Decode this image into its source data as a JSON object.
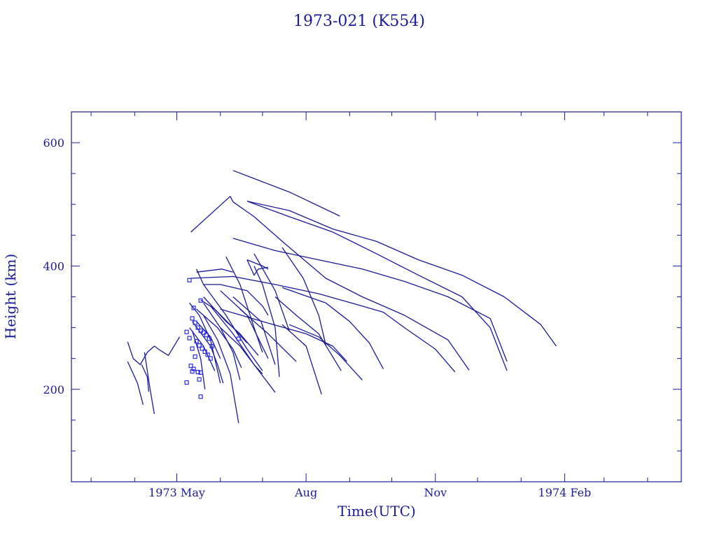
{
  "chart_data": {
    "type": "line",
    "title": "1973-021 (K554)",
    "xlabel": "Time(UTC)",
    "ylabel": "Height (km)",
    "x_axis": {
      "unit": "date",
      "range": [
        "1973-02-15",
        "1974-04-25"
      ],
      "tick_labels": [
        {
          "label": "1973 May",
          "date": "1973-05-01"
        },
        {
          "label": "Aug",
          "date": "1973-08-01"
        },
        {
          "label": "Nov",
          "date": "1973-11-01"
        },
        {
          "label": "1974 Feb",
          "date": "1974-02-01"
        }
      ]
    },
    "y_axis": {
      "unit": "km",
      "range": [
        50,
        650
      ],
      "tick_labels": [
        200,
        400,
        600
      ]
    },
    "grid": false,
    "color": "#1a1a99",
    "marker_color": "#2a2ae8",
    "series": [
      {
        "points": [
          [
            "1973-06-10",
            555
          ],
          [
            "1973-07-20",
            520
          ],
          [
            "1973-08-25",
            481
          ]
        ]
      },
      {
        "points": [
          [
            "1973-05-11",
            455
          ],
          [
            "1973-06-08",
            513
          ],
          [
            "1973-06-10",
            504
          ]
        ]
      },
      {
        "points": [
          [
            "1973-06-10",
            504
          ],
          [
            "1973-06-25",
            480
          ],
          [
            "1973-07-05",
            460
          ],
          [
            "1973-07-15",
            440
          ],
          [
            "1973-08-15",
            380
          ],
          [
            "1973-09-10",
            350
          ],
          [
            "1973-10-10",
            320
          ],
          [
            "1973-11-10",
            280
          ],
          [
            "1973-11-25",
            231
          ]
        ]
      },
      {
        "points": [
          [
            "1973-06-20",
            505
          ],
          [
            "1973-07-20",
            490
          ],
          [
            "1973-08-20",
            460
          ],
          [
            "1973-09-20",
            440
          ],
          [
            "1973-10-20",
            410
          ],
          [
            "1973-11-20",
            385
          ],
          [
            "1973-12-20",
            350
          ],
          [
            "1974-01-15",
            305
          ],
          [
            "1974-01-26",
            270
          ]
        ]
      },
      {
        "points": [
          [
            "1973-06-20",
            505
          ],
          [
            "1973-07-20",
            480
          ],
          [
            "1973-08-20",
            455
          ],
          [
            "1973-09-20",
            420
          ],
          [
            "1973-10-20",
            385
          ],
          [
            "1973-11-20",
            350
          ],
          [
            "1973-12-10",
            300
          ],
          [
            "1973-12-22",
            230
          ]
        ]
      },
      {
        "points": [
          [
            "1973-06-10",
            445
          ],
          [
            "1973-07-10",
            425
          ],
          [
            "1973-08-10",
            410
          ],
          [
            "1973-09-10",
            395
          ],
          [
            "1973-10-10",
            375
          ],
          [
            "1973-11-10",
            350
          ],
          [
            "1973-12-10",
            315
          ],
          [
            "1973-12-22",
            245
          ]
        ]
      },
      {
        "points": [
          [
            "1973-05-11",
            380
          ],
          [
            "1973-06-10",
            383
          ],
          [
            "1973-07-10",
            370
          ],
          [
            "1973-08-10",
            355
          ],
          [
            "1973-09-10",
            335
          ],
          [
            "1973-09-25",
            325
          ],
          [
            "1973-10-10",
            300
          ],
          [
            "1973-11-01",
            265
          ],
          [
            "1973-11-15",
            228
          ]
        ]
      },
      {
        "points": [
          [
            "1973-07-15",
            365
          ],
          [
            "1973-08-15",
            340
          ],
          [
            "1973-09-01",
            310
          ],
          [
            "1973-09-15",
            275
          ],
          [
            "1973-09-25",
            233
          ]
        ]
      },
      {
        "points": [
          [
            "1973-06-01",
            330
          ],
          [
            "1973-07-01",
            310
          ],
          [
            "1973-08-01",
            290
          ],
          [
            "1973-08-20",
            270
          ],
          [
            "1973-08-30",
            245
          ]
        ]
      },
      {
        "points": [
          [
            "1973-07-20",
            305
          ],
          [
            "1973-08-10",
            285
          ],
          [
            "1973-08-25",
            255
          ],
          [
            "1973-09-10",
            215
          ]
        ]
      },
      {
        "points": [
          [
            "1973-07-15",
            430
          ],
          [
            "1973-07-30",
            380
          ],
          [
            "1973-08-10",
            320
          ],
          [
            "1973-08-15",
            272
          ]
        ]
      },
      {
        "points": [
          [
            "1973-06-25",
            420
          ],
          [
            "1973-07-10",
            360
          ],
          [
            "1973-07-20",
            295
          ]
        ]
      },
      {
        "points": [
          [
            "1973-07-10",
            350
          ],
          [
            "1973-07-25",
            320
          ],
          [
            "1973-08-10",
            290
          ],
          [
            "1973-08-26",
            230
          ]
        ]
      },
      {
        "points": [
          [
            "1973-07-15",
            305
          ],
          [
            "1973-08-01",
            270
          ],
          [
            "1973-08-12",
            192
          ]
        ]
      },
      {
        "points": [
          [
            "1973-06-15",
            330
          ],
          [
            "1973-07-05",
            290
          ],
          [
            "1973-07-25",
            245
          ]
        ]
      },
      {
        "points": [
          [
            "1973-06-10",
            350
          ],
          [
            "1973-06-30",
            310
          ],
          [
            "1973-07-10",
            240
          ]
        ]
      },
      {
        "points": [
          [
            "1973-06-01",
            360
          ],
          [
            "1973-06-20",
            320
          ],
          [
            "1973-07-05",
            250
          ]
        ]
      },
      {
        "points": [
          [
            "1973-06-20",
            410
          ],
          [
            "1973-07-01",
            400
          ],
          [
            "1973-07-05",
            395
          ]
        ]
      },
      {
        "points": [
          [
            "1973-06-25",
            400
          ],
          [
            "1973-07-01",
            370
          ],
          [
            "1973-07-10",
            300
          ],
          [
            "1973-07-13",
            220
          ]
        ]
      },
      {
        "points": [
          [
            "1973-06-05",
            415
          ],
          [
            "1973-06-15",
            370
          ],
          [
            "1973-06-25",
            300
          ],
          [
            "1973-07-01",
            260
          ]
        ]
      },
      {
        "points": [
          [
            "1973-05-20",
            370
          ],
          [
            "1973-06-05",
            320
          ],
          [
            "1973-06-20",
            265
          ],
          [
            "1973-07-01",
            230
          ]
        ]
      },
      {
        "points": [
          [
            "1973-05-25",
            335
          ],
          [
            "1973-06-10",
            290
          ],
          [
            "1973-06-25",
            240
          ],
          [
            "1973-07-01",
            225
          ]
        ]
      },
      {
        "points": [
          [
            "1973-06-01",
            300
          ],
          [
            "1973-06-15",
            270
          ],
          [
            "1973-06-25",
            240
          ],
          [
            "1973-07-10",
            195
          ]
        ]
      },
      {
        "points": [
          [
            "1973-05-20",
            340
          ],
          [
            "1973-06-01",
            300
          ],
          [
            "1973-06-10",
            260
          ],
          [
            "1973-06-15",
            215
          ]
        ]
      },
      {
        "points": [
          [
            "1973-05-15",
            330
          ],
          [
            "1973-05-30",
            300
          ],
          [
            "1973-06-10",
            265
          ],
          [
            "1973-06-16",
            235
          ]
        ]
      },
      {
        "points": [
          [
            "1973-05-20",
            320
          ],
          [
            "1973-05-30",
            280
          ],
          [
            "1973-06-08",
            225
          ],
          [
            "1973-06-14",
            145
          ]
        ]
      },
      {
        "points": [
          [
            "1973-05-12",
            310
          ],
          [
            "1973-05-25",
            270
          ],
          [
            "1973-05-30",
            240
          ],
          [
            "1973-06-03",
            210
          ]
        ]
      },
      {
        "points": [
          [
            "1973-05-10",
            300
          ],
          [
            "1973-05-20",
            270
          ],
          [
            "1973-05-28",
            230
          ]
        ]
      },
      {
        "points": [
          [
            "1973-05-15",
            310
          ],
          [
            "1973-05-25",
            285
          ],
          [
            "1973-06-01",
            250
          ]
        ]
      },
      {
        "points": [
          [
            "1973-05-12",
            295
          ],
          [
            "1973-05-18",
            250
          ],
          [
            "1973-05-21",
            200
          ]
        ]
      },
      {
        "points": [
          [
            "1973-05-10",
            340
          ],
          [
            "1973-05-17",
            320
          ],
          [
            "1973-05-25",
            280
          ],
          [
            "1973-06-01",
            210
          ]
        ]
      },
      {
        "points": [
          [
            "1973-05-15",
            395
          ],
          [
            "1973-05-20",
            370
          ],
          [
            "1973-06-01",
            370
          ],
          [
            "1973-06-20",
            360
          ],
          [
            "1973-07-01",
            335
          ],
          [
            "1973-07-05",
            320
          ]
        ]
      },
      {
        "points": [
          [
            "1973-05-20",
            350
          ],
          [
            "1973-06-05",
            310
          ],
          [
            "1973-06-15",
            290
          ],
          [
            "1973-06-28",
            255
          ]
        ]
      },
      {
        "points": [
          [
            "1973-05-18",
            345
          ],
          [
            "1973-05-28",
            330
          ],
          [
            "1973-06-10",
            300
          ],
          [
            "1973-06-20",
            275
          ]
        ]
      },
      {
        "points": [
          [
            "1973-05-15",
            390
          ],
          [
            "1973-06-02",
            395
          ],
          [
            "1973-06-10",
            390
          ]
        ]
      },
      {
        "points": [
          [
            "1973-06-20",
            410
          ],
          [
            "1973-06-25",
            385
          ],
          [
            "1973-06-28",
            395
          ],
          [
            "1973-07-05",
            398
          ]
        ]
      },
      {
        "points": [
          [
            "1973-03-27",
            277
          ],
          [
            "1973-03-31",
            250
          ],
          [
            "1973-04-05",
            240
          ],
          [
            "1973-04-10",
            260
          ],
          [
            "1973-04-15",
            270
          ],
          [
            "1973-04-20",
            262
          ],
          [
            "1973-04-25",
            255
          ],
          [
            "1973-05-03",
            285
          ]
        ]
      },
      {
        "points": [
          [
            "1973-03-27",
            245
          ],
          [
            "1973-04-03",
            210
          ],
          [
            "1973-04-07",
            175
          ]
        ]
      },
      {
        "points": [
          [
            "1973-04-08",
            260
          ],
          [
            "1973-04-12",
            200
          ],
          [
            "1973-04-15",
            160
          ]
        ]
      },
      {
        "points": [
          [
            "1973-04-06",
            240
          ],
          [
            "1973-04-10",
            220
          ],
          [
            "1973-04-11",
            196
          ]
        ]
      }
    ],
    "markers": [
      [
        "1973-05-10",
        377
      ],
      [
        "1973-05-13",
        332
      ],
      [
        "1973-05-18",
        344
      ],
      [
        "1973-05-12",
        315
      ],
      [
        "1973-05-14",
        308
      ],
      [
        "1973-05-16",
        300
      ],
      [
        "1973-05-18",
        295
      ],
      [
        "1973-05-20",
        292
      ],
      [
        "1973-05-22",
        288
      ],
      [
        "1973-05-24",
        282
      ],
      [
        "1973-05-15",
        278
      ],
      [
        "1973-05-17",
        271
      ],
      [
        "1973-05-19",
        266
      ],
      [
        "1973-05-21",
        261
      ],
      [
        "1973-05-23",
        256
      ],
      [
        "1973-05-25",
        250
      ],
      [
        "1973-05-26",
        270
      ],
      [
        "1973-05-08",
        293
      ],
      [
        "1973-05-10",
        283
      ],
      [
        "1973-05-12",
        266
      ],
      [
        "1973-05-14",
        253
      ],
      [
        "1973-05-11",
        238
      ],
      [
        "1973-05-13",
        233
      ],
      [
        "1973-05-12",
        229
      ],
      [
        "1973-05-16",
        228
      ],
      [
        "1973-05-18",
        227
      ],
      [
        "1973-05-08",
        211
      ],
      [
        "1973-05-17",
        216
      ],
      [
        "1973-05-18",
        188
      ],
      [
        "1973-06-14",
        282
      ]
    ]
  }
}
